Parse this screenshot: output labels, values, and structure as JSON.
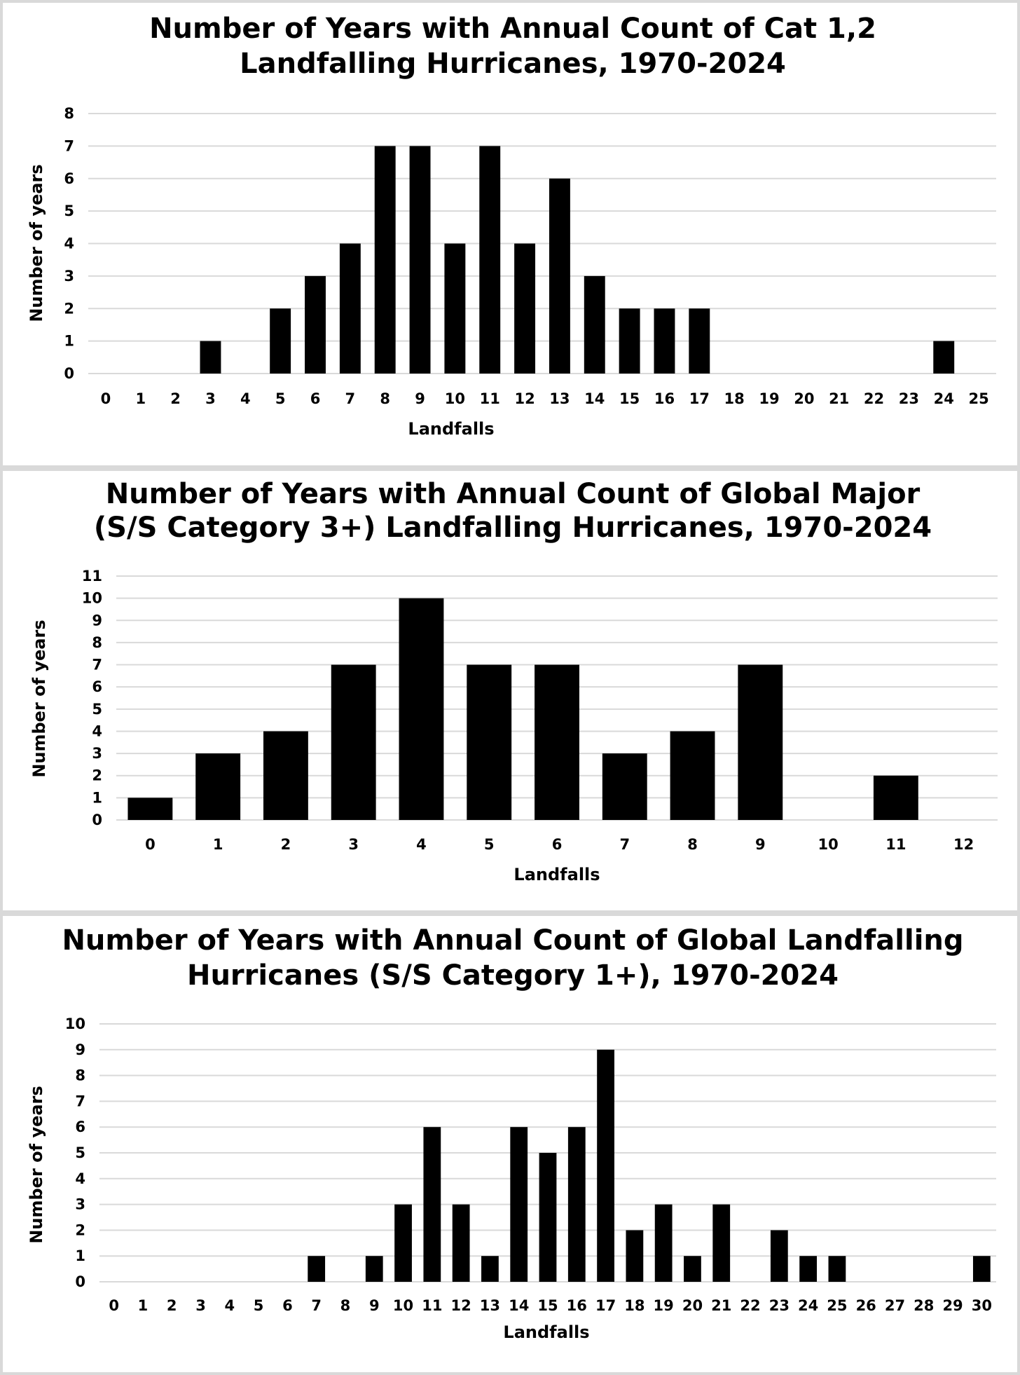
{
  "chart_data": [
    {
      "type": "bar",
      "title": [
        "Number of Years with Annual Count of Cat 1,2",
        "Landfalling Hurricanes, 1970-2024"
      ],
      "xlabel": "Landfalls",
      "ylabel": "Number of years",
      "ylim": [
        0,
        8
      ],
      "yticks": [
        "0",
        "1",
        "2",
        "3",
        "4",
        "5",
        "6",
        "7",
        "8"
      ],
      "grid": true,
      "categories": [
        "0",
        "1",
        "2",
        "3",
        "4",
        "5",
        "6",
        "7",
        "8",
        "9",
        "10",
        "11",
        "12",
        "13",
        "14",
        "15",
        "16",
        "17",
        "18",
        "19",
        "20",
        "21",
        "22",
        "23",
        "24",
        "25"
      ],
      "values": [
        0,
        0,
        0,
        1,
        0,
        2,
        3,
        4,
        7,
        7,
        4,
        7,
        4,
        6,
        3,
        2,
        2,
        2,
        0,
        0,
        0,
        0,
        0,
        0,
        1,
        0
      ],
      "bar_color": "#000000"
    },
    {
      "type": "bar",
      "title": [
        "Number of Years with Annual Count of Global Major",
        "(S/S Category 3+) Landfalling Hurricanes, 1970-2024"
      ],
      "xlabel": "Landfalls",
      "ylabel": "Number of years",
      "ylim": [
        0,
        11
      ],
      "yticks": [
        "0",
        "1",
        "2",
        "3",
        "4",
        "5",
        "6",
        "7",
        "8",
        "9",
        "10",
        "11"
      ],
      "grid": true,
      "categories": [
        "0",
        "1",
        "2",
        "3",
        "4",
        "5",
        "6",
        "7",
        "8",
        "9",
        "10",
        "11",
        "12"
      ],
      "values": [
        1,
        3,
        4,
        7,
        10,
        7,
        7,
        3,
        4,
        7,
        0,
        2,
        0
      ],
      "bar_color": "#000000"
    },
    {
      "type": "bar",
      "title": [
        "Number of Years with Annual Count of Global Landfalling",
        "Hurricanes (S/S Category 1+), 1970-2024"
      ],
      "xlabel": "Landfalls",
      "ylabel": "Number of years",
      "ylim": [
        0,
        10
      ],
      "yticks": [
        "0",
        "1",
        "2",
        "3",
        "4",
        "5",
        "6",
        "7",
        "8",
        "9",
        "10"
      ],
      "grid": true,
      "categories": [
        "0",
        "1",
        "2",
        "3",
        "4",
        "5",
        "6",
        "7",
        "8",
        "9",
        "10",
        "11",
        "12",
        "13",
        "14",
        "15",
        "16",
        "17",
        "18",
        "19",
        "20",
        "21",
        "22",
        "23",
        "24",
        "25",
        "26",
        "27",
        "28",
        "29",
        "30"
      ],
      "values": [
        0,
        0,
        0,
        0,
        0,
        0,
        0,
        1,
        0,
        1,
        3,
        6,
        3,
        1,
        6,
        5,
        6,
        9,
        2,
        3,
        1,
        3,
        0,
        2,
        1,
        1,
        0,
        0,
        0,
        0,
        1
      ],
      "bar_color": "#000000"
    }
  ]
}
